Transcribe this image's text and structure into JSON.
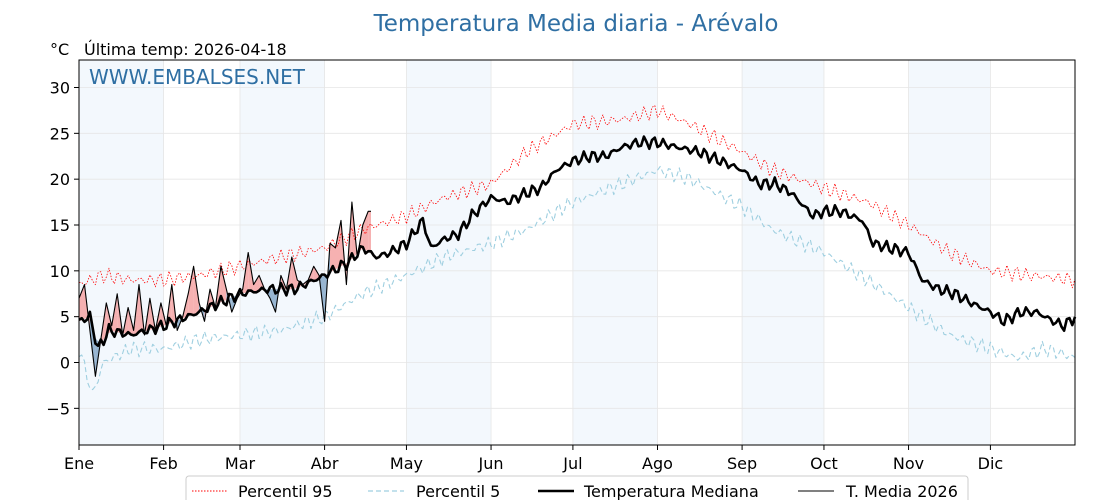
{
  "chart_data": {
    "type": "line",
    "title": "Temperatura Media diaria - Arévalo",
    "unit": "°C",
    "last_temp_label": "Última temp: 2026-04-18",
    "watermark": "WWW.EMBALSES.NET",
    "ylim": [
      -9,
      33
    ],
    "yticks": [
      -5,
      0,
      5,
      10,
      15,
      20,
      25,
      30
    ],
    "ytick_labels": [
      "−5",
      "0",
      "5",
      "10",
      "15",
      "20",
      "25",
      "30"
    ],
    "xlim": [
      1,
      366
    ],
    "months": [
      {
        "label": "Ene",
        "day": 1
      },
      {
        "label": "Feb",
        "day": 32
      },
      {
        "label": "Mar",
        "day": 60
      },
      {
        "label": "Abr",
        "day": 91
      },
      {
        "label": "May",
        "day": 121
      },
      {
        "label": "Jun",
        "day": 152
      },
      {
        "label": "Jul",
        "day": 182
      },
      {
        "label": "Ago",
        "day": 213
      },
      {
        "label": "Sep",
        "day": 244
      },
      {
        "label": "Oct",
        "day": 274
      },
      {
        "label": "Nov",
        "day": 305
      },
      {
        "label": "Dic",
        "day": 335
      }
    ],
    "shaded_bands": [
      [
        1,
        32
      ],
      [
        60,
        91
      ],
      [
        121,
        152
      ],
      [
        182,
        213
      ],
      [
        244,
        274
      ],
      [
        305,
        335
      ]
    ],
    "grid": true,
    "legend_position": "bottom",
    "series": [
      {
        "name": "Percentil 95",
        "style": "dotted",
        "color": "#ff0000",
        "x": [
          1,
          10,
          20,
          32,
          45,
          60,
          75,
          91,
          105,
          121,
          135,
          152,
          165,
          182,
          200,
          213,
          225,
          244,
          255,
          274,
          290,
          305,
          320,
          335,
          350,
          366
        ],
        "y": [
          8.5,
          9.5,
          9.0,
          9.0,
          9.5,
          10.5,
          11.5,
          12.5,
          14.5,
          16.0,
          18.0,
          19.5,
          23.0,
          26.0,
          26.5,
          27.5,
          26.0,
          23.0,
          21.0,
          19.0,
          17.5,
          15.0,
          12.0,
          10.0,
          9.5,
          9.0
        ]
      },
      {
        "name": "Percentil 5",
        "style": "dashed",
        "color": "#9fcfe0",
        "x": [
          1,
          6,
          10,
          20,
          32,
          45,
          60,
          75,
          91,
          105,
          121,
          135,
          152,
          165,
          182,
          200,
          213,
          225,
          244,
          255,
          274,
          290,
          305,
          320,
          335,
          345,
          355,
          366
        ],
        "y": [
          1.5,
          -3.5,
          0.0,
          1.5,
          1.5,
          2.5,
          3.0,
          3.5,
          5.0,
          7.5,
          9.5,
          11.5,
          13.0,
          14.5,
          17.5,
          19.5,
          21.0,
          20.0,
          17.0,
          14.5,
          12.0,
          9.0,
          6.0,
          3.0,
          1.5,
          0.5,
          1.5,
          0.5
        ]
      },
      {
        "name": "Temperatura Mediana",
        "style": "solid-thick",
        "color": "#000000",
        "x": [
          1,
          5,
          8,
          12,
          20,
          32,
          45,
          60,
          70,
          80,
          91,
          100,
          105,
          110,
          115,
          121,
          127,
          130,
          135,
          140,
          145,
          152,
          158,
          165,
          170,
          176,
          182,
          188,
          194,
          200,
          206,
          213,
          220,
          228,
          236,
          244,
          250,
          256,
          262,
          270,
          274,
          280,
          288,
          292,
          298,
          305,
          310,
          316,
          322,
          328,
          335,
          340,
          346,
          352,
          358,
          362,
          366
        ],
        "y": [
          4.5,
          5.0,
          1.5,
          3.5,
          3.0,
          4.0,
          5.5,
          7.5,
          8.0,
          8.0,
          9.5,
          11.0,
          12.5,
          11.5,
          12.0,
          13.0,
          15.5,
          12.5,
          13.5,
          14.0,
          16.0,
          18.0,
          17.5,
          18.5,
          19.0,
          21.0,
          22.0,
          22.5,
          22.5,
          23.5,
          24.0,
          24.0,
          23.5,
          23.0,
          22.0,
          21.0,
          19.5,
          19.5,
          18.5,
          16.0,
          16.5,
          16.5,
          15.5,
          13.0,
          12.5,
          12.0,
          9.0,
          8.0,
          7.5,
          6.5,
          5.5,
          4.5,
          5.5,
          5.5,
          4.5,
          4.0,
          5.0
        ]
      },
      {
        "name": "T. Media 2026",
        "style": "solid-thin",
        "color": "#000000",
        "x": [
          1,
          3,
          5,
          7,
          9,
          11,
          13,
          15,
          17,
          19,
          21,
          23,
          25,
          27,
          29,
          31,
          33,
          35,
          37,
          39,
          41,
          43,
          45,
          47,
          49,
          51,
          53,
          55,
          57,
          59,
          61,
          63,
          65,
          67,
          69,
          71,
          73,
          75,
          77,
          79,
          81,
          83,
          85,
          87,
          89,
          91,
          93,
          95,
          97,
          99,
          101,
          103,
          105,
          107,
          108
        ],
        "y": [
          7.0,
          8.5,
          3.5,
          -1.5,
          2.5,
          6.5,
          4.0,
          7.5,
          3.0,
          6.0,
          3.5,
          8.5,
          3.0,
          7.0,
          3.5,
          6.5,
          4.0,
          8.5,
          3.5,
          5.0,
          7.5,
          10.5,
          6.5,
          4.5,
          8.0,
          6.0,
          10.5,
          8.0,
          5.5,
          7.0,
          8.0,
          12.0,
          8.5,
          9.5,
          8.0,
          7.0,
          5.5,
          9.5,
          8.0,
          11.5,
          9.0,
          8.5,
          9.0,
          10.5,
          9.5,
          4.5,
          13.0,
          12.5,
          15.5,
          8.5,
          17.5,
          11.5,
          15.0,
          16.5,
          16.5
        ]
      }
    ]
  }
}
